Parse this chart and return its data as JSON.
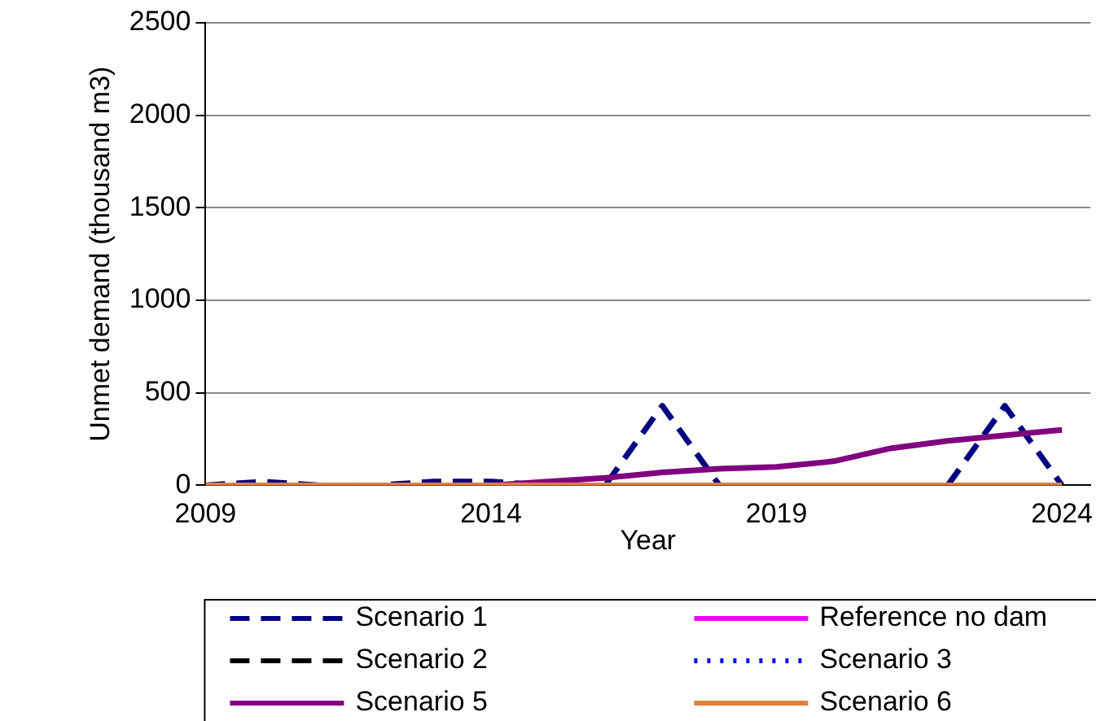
{
  "chart_data": {
    "type": "line",
    "xlabel": "Year",
    "ylabel": "Unmet demand (thousand m3)",
    "x": [
      2009,
      2010,
      2011,
      2012,
      2013,
      2014,
      2015,
      2016,
      2017,
      2018,
      2019,
      2020,
      2021,
      2022,
      2023,
      2024
    ],
    "xlim": [
      2009,
      2024.5
    ],
    "xticks": [
      2009,
      2014,
      2019,
      2024
    ],
    "ylim": [
      0,
      2500
    ],
    "yticks": [
      0,
      500,
      1000,
      1500,
      2000,
      2500
    ],
    "grid": "y",
    "legend": "bottom",
    "marker": "none",
    "series": [
      {
        "name": "Scenario 1",
        "color": "#000080",
        "line_style": "dashed",
        "values": [
          0,
          20,
          0,
          0,
          20,
          20,
          0,
          0,
          430,
          0,
          null,
          null,
          null,
          0,
          430,
          0
        ]
      },
      {
        "name": "Reference no dam",
        "color": "#ff00ff",
        "line_style": "solid",
        "values": [
          null,
          null,
          null,
          null,
          null,
          null,
          null,
          null,
          null,
          null,
          null,
          null,
          null,
          null,
          null,
          null
        ]
      },
      {
        "name": "Scenario 2",
        "color": "#000000",
        "line_style": "dashed",
        "values": [
          null,
          null,
          null,
          null,
          null,
          null,
          null,
          null,
          null,
          null,
          null,
          null,
          null,
          null,
          null,
          null
        ]
      },
      {
        "name": "Scenario 3",
        "color": "#0000ff",
        "line_style": "dotted",
        "values": [
          null,
          null,
          null,
          null,
          null,
          null,
          null,
          null,
          null,
          null,
          null,
          null,
          null,
          null,
          null,
          null
        ]
      },
      {
        "name": "Scenario 5",
        "color": "#800080",
        "line_style": "solid",
        "values": [
          null,
          null,
          null,
          null,
          null,
          0,
          20,
          40,
          70,
          90,
          100,
          130,
          200,
          240,
          270,
          300
        ]
      },
      {
        "name": "Scenario 6",
        "color": "#e08040",
        "line_style": "solid",
        "values": [
          0,
          0,
          0,
          0,
          0,
          0,
          0,
          0,
          0,
          0,
          0,
          0,
          0,
          0,
          0,
          0
        ]
      }
    ]
  }
}
